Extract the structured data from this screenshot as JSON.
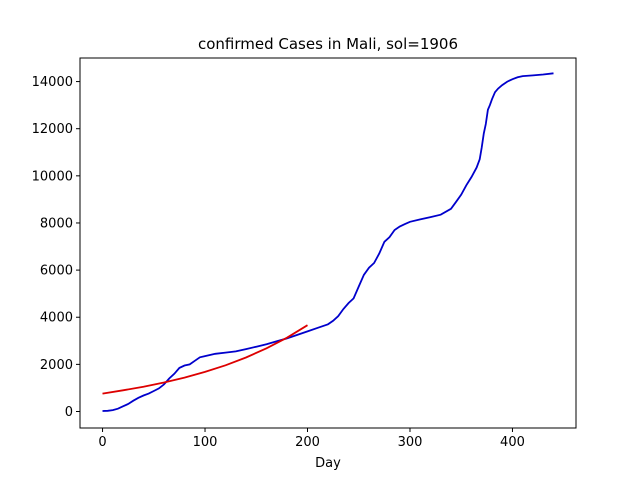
{
  "chart_data": {
    "type": "line",
    "title": "confirmed Cases in Mali, sol=1906",
    "xlabel": "Day",
    "ylabel": "",
    "xlim": [
      -22,
      462
    ],
    "ylim": [
      -700,
      15000
    ],
    "x_ticks": [
      0,
      100,
      200,
      300,
      400
    ],
    "y_ticks": [
      0,
      2000,
      4000,
      6000,
      8000,
      10000,
      12000,
      14000
    ],
    "grid": false,
    "series": [
      {
        "color": "#0000cc",
        "x": [
          0,
          5,
          10,
          15,
          20,
          25,
          30,
          35,
          40,
          45,
          50,
          55,
          60,
          65,
          70,
          75,
          80,
          85,
          90,
          95,
          100,
          110,
          120,
          130,
          140,
          150,
          160,
          170,
          180,
          190,
          200,
          210,
          220,
          225,
          230,
          235,
          240,
          245,
          250,
          255,
          260,
          265,
          270,
          275,
          280,
          285,
          290,
          295,
          300,
          310,
          320,
          330,
          340,
          345,
          350,
          355,
          360,
          365,
          368,
          370,
          372,
          374,
          376,
          378,
          380,
          383,
          386,
          390,
          395,
          400,
          405,
          410,
          420,
          430,
          440
        ],
        "y": [
          20,
          30,
          60,
          120,
          220,
          320,
          460,
          580,
          680,
          760,
          870,
          980,
          1150,
          1400,
          1600,
          1850,
          1950,
          2000,
          2150,
          2300,
          2350,
          2450,
          2500,
          2550,
          2650,
          2750,
          2850,
          2980,
          3100,
          3250,
          3400,
          3550,
          3700,
          3850,
          4050,
          4350,
          4600,
          4800,
          5300,
          5800,
          6100,
          6300,
          6700,
          7200,
          7400,
          7700,
          7850,
          7950,
          8050,
          8150,
          8250,
          8350,
          8600,
          8900,
          9200,
          9600,
          9950,
          10350,
          10700,
          11200,
          11800,
          12200,
          12800,
          13000,
          13250,
          13550,
          13700,
          13850,
          14000,
          14100,
          14180,
          14230,
          14260,
          14300,
          14350
        ]
      },
      {
        "color": "#dd0000",
        "x": [
          0,
          20,
          40,
          60,
          80,
          100,
          120,
          140,
          160,
          180,
          200
        ],
        "y": [
          760,
          900,
          1050,
          1230,
          1440,
          1680,
          1960,
          2290,
          2680,
          3130,
          3660
        ]
      }
    ]
  }
}
